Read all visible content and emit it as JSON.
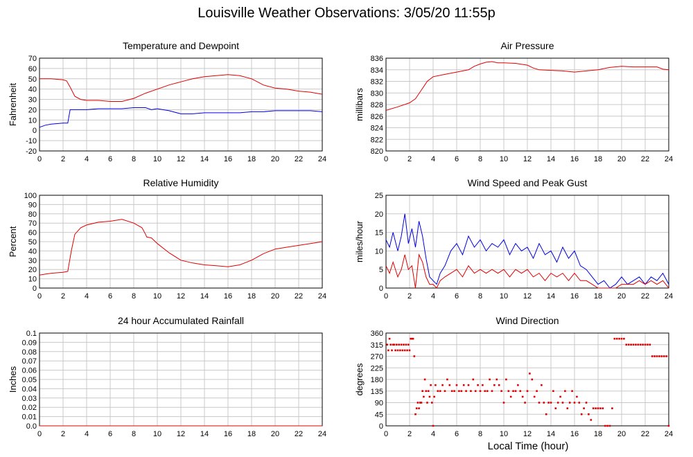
{
  "page": {
    "title": "Louisville Weather Observations: 3/05/20 11:55p",
    "common_xlabel": "Local Time (hour)"
  },
  "colors": {
    "red": "#e00000",
    "blue": "#0000e0",
    "grid": "#c8c8c8"
  },
  "chart_data": [
    {
      "id": "temp",
      "type": "line",
      "title": "Temperature and Dewpoint",
      "xlabel": "",
      "ylabel": "Fahrenheit",
      "xlim": [
        0,
        24
      ],
      "ylim": [
        -20,
        70
      ],
      "xticks": [
        0,
        2,
        4,
        6,
        8,
        10,
        12,
        14,
        16,
        18,
        20,
        22,
        24
      ],
      "yticks": [
        -20,
        -10,
        0,
        10,
        20,
        30,
        40,
        50,
        60,
        70
      ],
      "grid": true,
      "series": [
        {
          "color": "red",
          "x": [
            0,
            1,
            2,
            2.3,
            2.6,
            3,
            3.5,
            4,
            5,
            6,
            7,
            8,
            9,
            10,
            11,
            12,
            13,
            14,
            15,
            16,
            17,
            18,
            18.5,
            19,
            20,
            21,
            22,
            23,
            24
          ],
          "y": [
            50,
            50,
            49,
            48,
            42,
            33,
            30,
            29,
            29,
            28,
            28,
            31,
            36,
            40,
            44,
            47,
            50,
            52,
            53,
            54,
            53,
            50,
            47,
            44,
            41,
            40,
            38,
            37,
            35
          ]
        },
        {
          "color": "blue",
          "x": [
            0,
            0.5,
            1,
            2,
            2.4,
            2.6,
            3,
            4,
            5,
            6,
            7,
            8,
            9,
            9.5,
            10,
            11,
            12,
            13,
            14,
            15,
            16,
            17,
            18,
            19,
            20,
            21,
            22,
            23,
            24
          ],
          "y": [
            3,
            5,
            6,
            7,
            7,
            20,
            20,
            20,
            21,
            21,
            21,
            22,
            22,
            20,
            21,
            19,
            16,
            16,
            17,
            17,
            17,
            17,
            18,
            18,
            19,
            19,
            19,
            19,
            18
          ]
        }
      ]
    },
    {
      "id": "pressure",
      "type": "line",
      "title": "Air Pressure",
      "xlabel": "",
      "ylabel": "millibars",
      "xlim": [
        0,
        24
      ],
      "ylim": [
        820,
        836
      ],
      "xticks": [
        0,
        2,
        4,
        6,
        8,
        10,
        12,
        14,
        16,
        18,
        20,
        22,
        24
      ],
      "yticks": [
        820,
        822,
        824,
        826,
        828,
        830,
        832,
        834,
        836
      ],
      "grid": true,
      "series": [
        {
          "color": "red",
          "x": [
            0,
            1,
            2,
            2.5,
            3,
            3.5,
            4,
            4.5,
            5,
            6,
            7,
            7.5,
            8,
            8.5,
            9,
            9.5,
            10,
            11,
            12,
            12.5,
            13,
            14,
            15,
            16,
            17,
            18,
            19,
            20,
            21,
            22,
            23,
            23.5,
            24
          ],
          "y": [
            827,
            827.6,
            828.3,
            829,
            830.5,
            832,
            832.8,
            833,
            833.2,
            833.6,
            834,
            834.6,
            835,
            835.3,
            835.4,
            835.2,
            835.2,
            835.1,
            834.8,
            834.3,
            834,
            833.9,
            833.8,
            833.6,
            833.8,
            834,
            834.4,
            834.6,
            834.5,
            834.5,
            834.5,
            834.1,
            834
          ]
        }
      ]
    },
    {
      "id": "humidity",
      "type": "line",
      "title": "Relative Humidity",
      "xlabel": "",
      "ylabel": "Percent",
      "xlim": [
        0,
        24
      ],
      "ylim": [
        0,
        100
      ],
      "xticks": [
        0,
        2,
        4,
        6,
        8,
        10,
        12,
        14,
        16,
        18,
        20,
        22,
        24
      ],
      "yticks": [
        0,
        10,
        20,
        30,
        40,
        50,
        60,
        70,
        80,
        90,
        100
      ],
      "grid": true,
      "series": [
        {
          "color": "red",
          "x": [
            0,
            0.5,
            1,
            2,
            2.4,
            2.7,
            3,
            3.5,
            4,
            5,
            6,
            7,
            8,
            8.7,
            9,
            9.1,
            9.5,
            10,
            11,
            12,
            13,
            14,
            15,
            16,
            17,
            18,
            19,
            20,
            21,
            22,
            23,
            24
          ],
          "y": [
            14,
            15,
            16,
            17,
            18,
            40,
            58,
            65,
            68,
            71,
            72,
            74,
            70,
            65,
            58,
            55,
            54,
            48,
            38,
            30,
            27,
            25,
            24,
            23,
            25,
            30,
            37,
            42,
            44,
            46,
            48,
            50
          ]
        }
      ]
    },
    {
      "id": "wind",
      "type": "line",
      "title": "Wind Speed and Peak Gust",
      "xlabel": "",
      "ylabel": "miles/hour",
      "xlim": [
        0,
        24
      ],
      "ylim": [
        0,
        25
      ],
      "xticks": [
        0,
        2,
        4,
        6,
        8,
        10,
        12,
        14,
        16,
        18,
        20,
        22,
        24
      ],
      "yticks": [
        0,
        5,
        10,
        15,
        20,
        25
      ],
      "grid": true,
      "series": [
        {
          "color": "blue",
          "x": [
            0,
            0.3,
            0.6,
            1,
            1.3,
            1.6,
            1.9,
            2.2,
            2.5,
            2.8,
            3.1,
            3.4,
            3.7,
            4,
            4.3,
            4.6,
            5,
            5.5,
            6,
            6.5,
            7,
            7.5,
            8,
            8.5,
            9,
            9.5,
            10,
            10.5,
            11,
            11.5,
            12,
            12.5,
            13,
            13.5,
            14,
            14.5,
            15,
            15.5,
            16,
            16.5,
            17,
            17.5,
            18,
            18.5,
            19,
            19.5,
            20,
            20.5,
            21,
            21.5,
            22,
            22.5,
            23,
            23.5,
            24
          ],
          "y": [
            13,
            11,
            15,
            10,
            14,
            20,
            12,
            16,
            11,
            18,
            14,
            8,
            3,
            2,
            1,
            4,
            6,
            10,
            12,
            9,
            14,
            11,
            13,
            10,
            12,
            11,
            13,
            9,
            12,
            10,
            11,
            8,
            12,
            9,
            10,
            7,
            11,
            8,
            10,
            6,
            5,
            3,
            1,
            2,
            0,
            1,
            3,
            1,
            2,
            3,
            1,
            3,
            2,
            4,
            1
          ]
        },
        {
          "color": "red",
          "x": [
            0,
            0.3,
            0.6,
            1,
            1.3,
            1.6,
            1.9,
            2.2,
            2.5,
            2.8,
            3.1,
            3.4,
            3.7,
            4,
            4.3,
            4.6,
            5,
            5.5,
            6,
            6.5,
            7,
            7.5,
            8,
            8.5,
            9,
            9.5,
            10,
            10.5,
            11,
            11.5,
            12,
            12.5,
            13,
            13.5,
            14,
            14.5,
            15,
            15.5,
            16,
            16.5,
            17,
            17.5,
            18,
            18.5,
            19,
            19.5,
            20,
            20.5,
            21,
            21.5,
            22,
            22.5,
            23,
            23.5,
            24
          ],
          "y": [
            6,
            4,
            7,
            3,
            5,
            9,
            5,
            6,
            0,
            9,
            7,
            3,
            1,
            1,
            0,
            2,
            3,
            4,
            5,
            3,
            6,
            4,
            5,
            4,
            5,
            4,
            5,
            3,
            5,
            4,
            5,
            3,
            4,
            2,
            4,
            3,
            4,
            2,
            4,
            2,
            2,
            1,
            0,
            0,
            0,
            0,
            1,
            1,
            1,
            2,
            1,
            2,
            1,
            2,
            0
          ]
        }
      ]
    },
    {
      "id": "rain",
      "type": "line",
      "title": "24 hour Accumulated Rainfall",
      "xlabel": "",
      "ylabel": "Inches",
      "xlim": [
        0,
        24
      ],
      "ylim": [
        0,
        0.1
      ],
      "xticks": [
        0,
        2,
        4,
        6,
        8,
        10,
        12,
        14,
        16,
        18,
        20,
        22,
        24
      ],
      "yticks": [
        0.0,
        0.01,
        0.02,
        0.03,
        0.04,
        0.05,
        0.06,
        0.07,
        0.08,
        0.09,
        0.1
      ],
      "ytick_labels": [
        "0.0",
        "0.01",
        "0.02",
        "0.03",
        "0.04",
        "0.05",
        "0.06",
        "0.07",
        "0.08",
        "0.09",
        "0.1"
      ],
      "grid": true,
      "series": [
        {
          "color": "red",
          "x": [
            0,
            24
          ],
          "y": [
            0,
            0
          ]
        }
      ]
    },
    {
      "id": "direction",
      "type": "scatter",
      "title": "Wind Direction",
      "xlabel": "Local Time (hour)",
      "ylabel": "degrees",
      "xlim": [
        0,
        24
      ],
      "ylim": [
        0,
        360
      ],
      "xticks": [
        0,
        2,
        4,
        6,
        8,
        10,
        12,
        14,
        16,
        18,
        20,
        22,
        24
      ],
      "yticks": [
        0,
        45,
        90,
        135,
        180,
        225,
        270,
        315,
        360
      ],
      "grid": true,
      "series": [
        {
          "color": "red",
          "x": [
            0.1,
            0.2,
            0.3,
            0.4,
            0.5,
            0.6,
            0.7,
            0.8,
            0.9,
            1.0,
            1.1,
            1.2,
            1.3,
            1.4,
            1.5,
            1.6,
            1.7,
            1.8,
            1.9,
            2.0,
            2.1,
            2.2,
            2.3,
            2.4,
            2.5,
            2.6,
            2.7,
            2.8,
            2.9,
            3.0,
            3.1,
            3.2,
            3.3,
            3.4,
            3.5,
            3.6,
            3.7,
            3.8,
            3.9,
            4.0,
            4.1,
            4.2,
            4.4,
            4.6,
            4.8,
            5.0,
            5.2,
            5.4,
            5.6,
            5.8,
            6.0,
            6.2,
            6.4,
            6.6,
            6.8,
            7.0,
            7.2,
            7.4,
            7.6,
            7.8,
            8.0,
            8.2,
            8.4,
            8.6,
            8.8,
            9.0,
            9.2,
            9.4,
            9.6,
            9.8,
            10.0,
            10.2,
            10.4,
            10.6,
            10.8,
            11.0,
            11.2,
            11.4,
            11.6,
            11.8,
            12.0,
            12.2,
            12.4,
            12.6,
            12.8,
            13.0,
            13.2,
            13.4,
            13.6,
            13.8,
            14.0,
            14.2,
            14.4,
            14.6,
            14.8,
            15.0,
            15.2,
            15.4,
            15.6,
            15.8,
            16.0,
            16.2,
            16.4,
            16.6,
            16.8,
            17.0,
            17.2,
            17.4,
            17.6,
            17.8,
            18.0,
            18.2,
            18.4,
            18.6,
            18.8,
            19.0,
            19.2,
            19.4,
            19.6,
            19.8,
            20.0,
            20.2,
            20.4,
            20.6,
            20.8,
            21.0,
            21.2,
            21.4,
            21.6,
            21.8,
            22.0,
            22.2,
            22.4,
            22.6,
            22.8,
            23.0,
            23.2,
            23.4,
            23.6,
            23.8,
            24.0
          ],
          "y": [
            315,
            293,
            338,
            315,
            293,
            315,
            315,
            293,
            315,
            293,
            315,
            293,
            315,
            293,
            315,
            293,
            315,
            293,
            315,
            293,
            338,
            338,
            338,
            270,
            45,
            68,
            90,
            68,
            90,
            90,
            135,
            113,
            180,
            135,
            90,
            135,
            113,
            158,
            90,
            0,
            113,
            158,
            135,
            135,
            158,
            135,
            180,
            158,
            135,
            135,
            158,
            135,
            135,
            158,
            135,
            158,
            135,
            180,
            135,
            158,
            135,
            158,
            135,
            135,
            180,
            135,
            158,
            180,
            158,
            135,
            90,
            180,
            135,
            113,
            135,
            135,
            158,
            135,
            113,
            90,
            135,
            203,
            180,
            113,
            135,
            90,
            158,
            90,
            45,
            90,
            90,
            135,
            68,
            90,
            113,
            90,
            135,
            68,
            90,
            135,
            90,
            113,
            90,
            45,
            68,
            90,
            45,
            23,
            68,
            68,
            68,
            68,
            68,
            0,
            0,
            0,
            68,
            338,
            338,
            338,
            338,
            338,
            315,
            315,
            315,
            315,
            315,
            315,
            315,
            315,
            315,
            315,
            315,
            270,
            270,
            270,
            270,
            270,
            270,
            270,
            0
          ]
        }
      ]
    }
  ]
}
